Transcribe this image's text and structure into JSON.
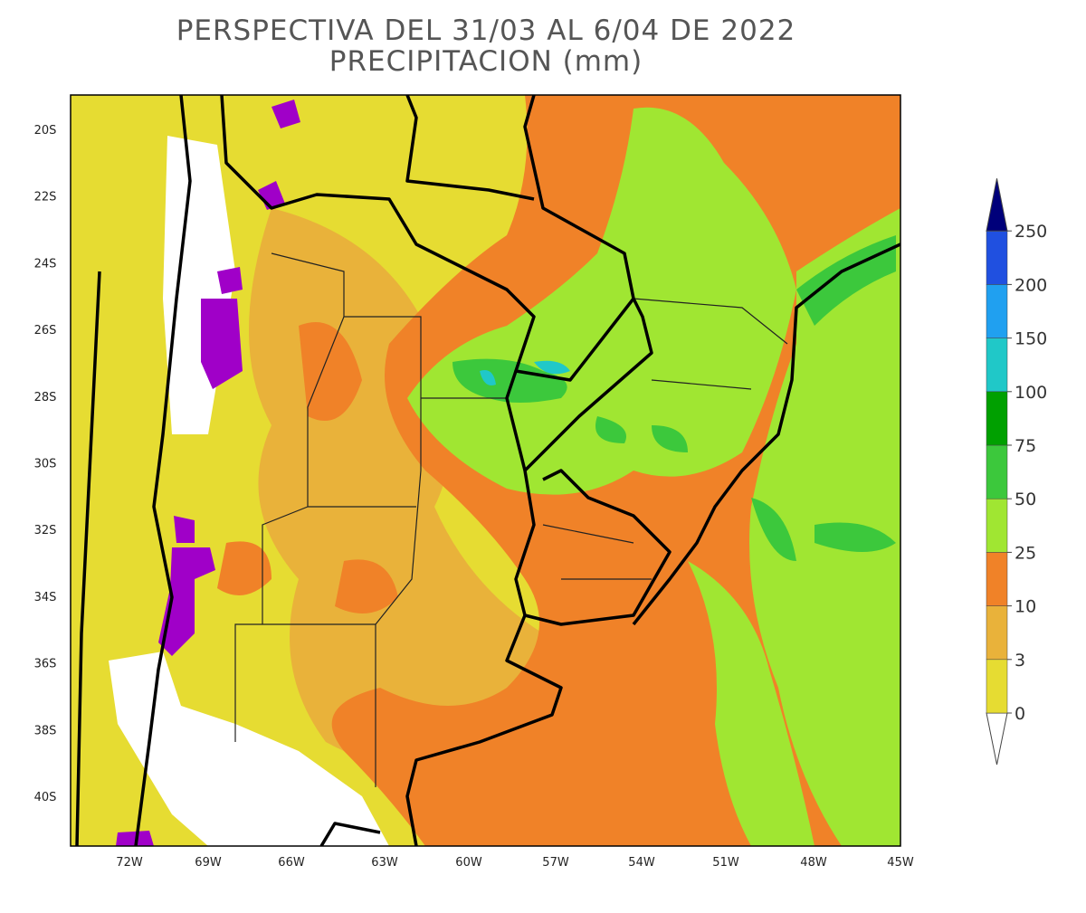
{
  "title": "PERSPECTIVA DEL 31/03 AL 6/04 DE 2022",
  "subtitle": "PRECIPITACION (mm)",
  "lat_labels": [
    "20S",
    "22S",
    "24S",
    "26S",
    "28S",
    "30S",
    "32S",
    "34S",
    "36S",
    "38S",
    "40S"
  ],
  "lon_labels": [
    "72W",
    "69W",
    "66W",
    "63W",
    "60W",
    "57W",
    "54W",
    "51W",
    "48W",
    "45W"
  ],
  "colorbar": {
    "levels": [
      0,
      3,
      10,
      25,
      50,
      75,
      100,
      150,
      200,
      250
    ],
    "colors": [
      "#e6dc32",
      "#e9b23a",
      "#f08228",
      "#a0e632",
      "#3cc83c",
      "#00a000",
      "#20c8c8",
      "#20a0f0",
      "#2050e0"
    ],
    "under_color": "#ffffff",
    "over_color": "#00007a"
  }
}
